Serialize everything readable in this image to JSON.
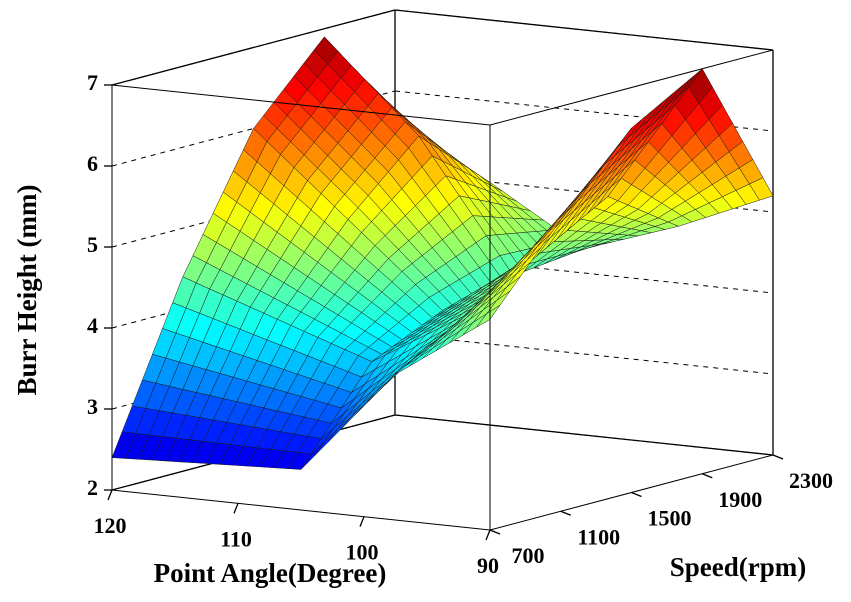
{
  "chart_data": {
    "type": "surface",
    "colormap": "jet",
    "xlabel": "Point Angle(Degree)",
    "ylabel": "Speed(rpm)",
    "zlabel": "Burr Height (mm)",
    "x": [
      90,
      97.5,
      105,
      112.5,
      120
    ],
    "y": [
      700,
      1100,
      1500,
      1900,
      2300
    ],
    "z": [
      [
        4.6,
        3.8,
        2.5,
        2.45,
        2.4
      ],
      [
        5.6,
        4.3,
        3.6,
        4.0,
        4.4
      ],
      [
        6.5,
        4.8,
        4.0,
        5.0,
        6.0
      ],
      [
        7.0,
        5.3,
        4.2,
        5.8,
        6.9
      ],
      [
        5.2,
        4.7,
        4.3,
        5.0,
        5.6
      ]
    ],
    "xlim": [
      90,
      120
    ],
    "ylim": [
      700,
      2300
    ],
    "zlim": [
      2,
      7
    ],
    "xticks": [
      120,
      110,
      100,
      90
    ],
    "yticks": [
      700,
      1100,
      1500,
      1900,
      2300
    ],
    "zticks": [
      2,
      3,
      4,
      5,
      6,
      7
    ],
    "grid": true
  }
}
